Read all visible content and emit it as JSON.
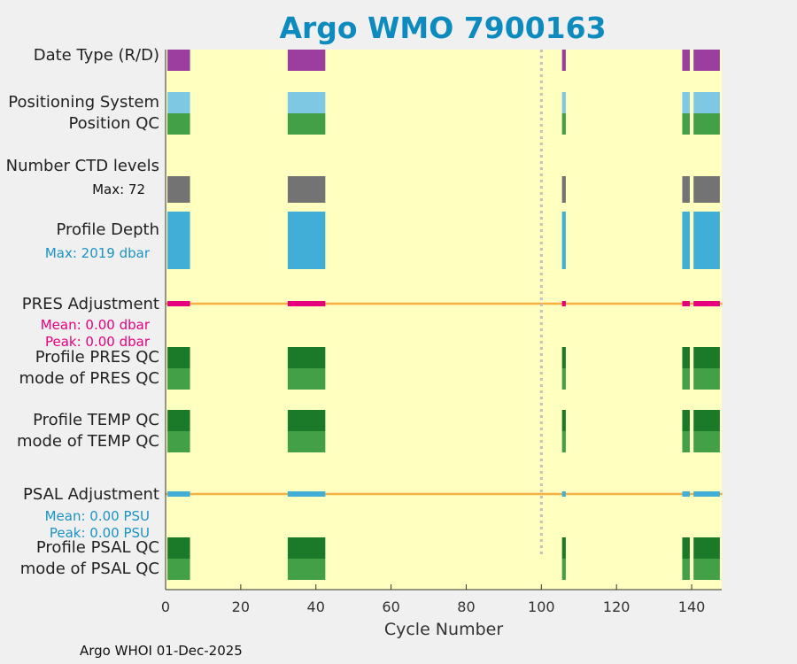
{
  "title": "Argo WMO 7900163",
  "footer": "Argo WHOI 01-Dec-2025",
  "labels": {
    "date_type": "Date Type (R/D)",
    "positioning_system": "Positioning System",
    "position_qc": "Position QC",
    "ctd_levels": "Number CTD levels",
    "ctd_max": "Max: 72",
    "profile_depth": "Profile Depth",
    "depth_max": "Max: 2019 dbar",
    "pres_adj": "PRES Adjustment",
    "pres_mean": "Mean: 0.00 dbar",
    "pres_peak": "Peak: 0.00 dbar",
    "profile_pres_qc": "Profile PRES QC",
    "mode_pres_qc": "mode of PRES QC",
    "profile_temp_qc": "Profile TEMP QC",
    "mode_temp_qc": "mode of TEMP QC",
    "psal_adj": "PSAL Adjustment",
    "psal_mean": "Mean: 0.00 PSU",
    "psal_peak": "Peak: 0.00 PSU",
    "profile_psal_qc": "Profile PSAL QC",
    "mode_psal_qc": "mode of PSAL QC"
  },
  "chart_data": {
    "type": "heatmap",
    "xlabel": "Cycle Number",
    "xlim": [
      0,
      148
    ],
    "xticks": [
      0,
      20,
      40,
      60,
      80,
      100,
      120,
      140
    ],
    "reference_line_x": 100,
    "colors": {
      "plot_bg": "#ffffc0",
      "date_type": "#9c3ea0",
      "positioning": "#7ec8e3",
      "qc_good": "#43a047",
      "qc_profile": "#1b7a2a",
      "ctd": "#737373",
      "depth": "#40aed6",
      "pres_adj": "#e6007e",
      "psal_adj": "#40aed6",
      "adj_line": "#f5b040",
      "ref_line": "#c0c0c0"
    },
    "cycle_ranges": [
      [
        1,
        6
      ],
      [
        33,
        42
      ],
      [
        106,
        106
      ],
      [
        138,
        139
      ],
      [
        141,
        147
      ]
    ],
    "rows": [
      {
        "name": "Date Type (R/D)",
        "ranges": [
          [
            1,
            6
          ],
          [
            33,
            42
          ],
          [
            106,
            106
          ],
          [
            138,
            139
          ],
          [
            141,
            147
          ]
        ]
      },
      {
        "name": "Positioning System",
        "ranges": [
          [
            1,
            6
          ],
          [
            33,
            42
          ],
          [
            106,
            106
          ],
          [
            138,
            139
          ],
          [
            141,
            147
          ]
        ]
      },
      {
        "name": "Position QC",
        "ranges": [
          [
            1,
            6
          ],
          [
            33,
            42
          ],
          [
            106,
            106
          ],
          [
            138,
            139
          ],
          [
            141,
            147
          ]
        ]
      },
      {
        "name": "Number CTD levels",
        "max": 72,
        "ranges": [
          [
            1,
            6
          ],
          [
            33,
            42
          ],
          [
            106,
            106
          ],
          [
            138,
            139
          ],
          [
            141,
            147
          ]
        ]
      },
      {
        "name": "Profile Depth",
        "max_dbar": 2019,
        "ranges": [
          [
            1,
            6
          ],
          [
            33,
            42
          ],
          [
            106,
            106
          ],
          [
            138,
            139
          ],
          [
            141,
            147
          ]
        ]
      },
      {
        "name": "PRES Adjustment",
        "mean_dbar": 0.0,
        "peak_dbar": 0.0
      },
      {
        "name": "Profile PRES QC"
      },
      {
        "name": "mode of PRES QC"
      },
      {
        "name": "Profile TEMP QC"
      },
      {
        "name": "mode of TEMP QC"
      },
      {
        "name": "PSAL Adjustment",
        "mean_psu": 0.0,
        "peak_psu": 0.0
      },
      {
        "name": "Profile PSAL QC"
      },
      {
        "name": "mode of PSAL QC"
      }
    ]
  }
}
